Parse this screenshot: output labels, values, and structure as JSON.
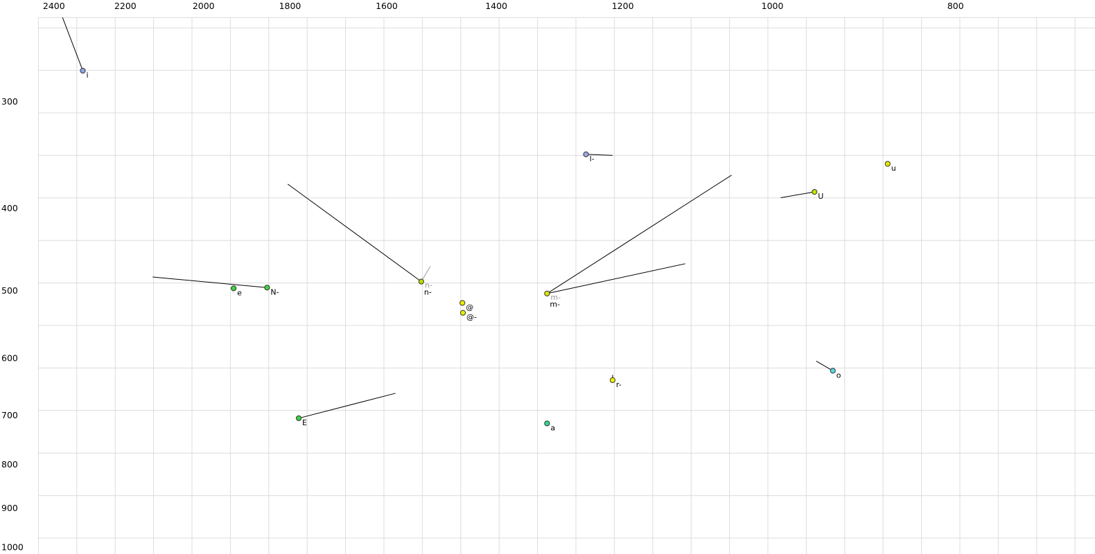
{
  "chart_data": {
    "type": "scatter",
    "title": "",
    "description": "Vowel formant chart: F2 (Hz, log scale, decreasing to the right) vs F1 (Hz, log scale, increasing downward); points are phone labels with formant-trajectory tail lines",
    "x_axis": {
      "label": "",
      "scale": "log",
      "direction": "decreasing-rightward",
      "range_hz": [
        2563,
        675
      ],
      "ticks": [
        2400,
        2200,
        2000,
        1800,
        1600,
        1400,
        1200,
        1000,
        800
      ]
    },
    "y_axis": {
      "label": "",
      "scale": "log",
      "direction": "increasing-downward",
      "range_hz": [
        228,
        1019
      ],
      "ticks": [
        300,
        400,
        500,
        600,
        700,
        800,
        900,
        1000
      ]
    },
    "grid": {
      "show": true,
      "color": "#dcdcdc"
    },
    "legend": {
      "show": false
    },
    "points": [
      {
        "id": "i",
        "label": "i",
        "f2": 2317,
        "f1": 276,
        "color": "#8aa7e8"
      },
      {
        "id": "l-",
        "label": "l-",
        "f2": 1255,
        "f1": 346,
        "color": "#9fa8e0"
      },
      {
        "id": "u",
        "label": "u",
        "f2": 869,
        "f1": 355,
        "color": "#e3ea00"
      },
      {
        "id": "U",
        "label": "U",
        "f2": 950,
        "f1": 383,
        "color": "#c6e000"
      },
      {
        "id": "e",
        "label": "e",
        "f2": 1928,
        "f1": 497,
        "color": "#3fd23f"
      },
      {
        "id": "N-",
        "label": "N-",
        "f2": 1851,
        "f1": 496,
        "color": "#3fd23f"
      },
      {
        "id": "n-",
        "label": "n-",
        "f2": 1534,
        "f1": 488,
        "color": "#b5dc00",
        "ghost_label": "n-"
      },
      {
        "id": "at",
        "label": "@",
        "f2": 1459,
        "f1": 517,
        "color": "#e8ee00"
      },
      {
        "id": "at-",
        "label": "@-",
        "f2": 1458,
        "f1": 531,
        "color": "#e8ee00"
      },
      {
        "id": "m-",
        "label": "m-",
        "f2": 1316,
        "f1": 504,
        "color": "#dfe600",
        "ghost_label": "m-"
      },
      {
        "id": "r-",
        "label": "r-",
        "f2": 1215,
        "f1": 637,
        "color": "#eef200"
      },
      {
        "id": "E",
        "label": "E",
        "f2": 1781,
        "f1": 706,
        "color": "#3fd23f"
      },
      {
        "id": "a",
        "label": "a",
        "f2": 1316,
        "f1": 716,
        "color": "#2fd690"
      },
      {
        "id": "o",
        "label": "o",
        "f2": 929,
        "f1": 621,
        "color": "#55d8dd"
      }
    ],
    "segments": [
      {
        "point": "i",
        "from": [
          2375,
          239
        ],
        "to": [
          2317,
          276
        ],
        "color": "#000000"
      },
      {
        "point": "l-",
        "from": [
          1255,
          346
        ],
        "to": [
          1215,
          347
        ],
        "color": "#000000"
      },
      {
        "point": "U",
        "from": [
          990,
          389
        ],
        "to": [
          950,
          383
        ],
        "color": "#000000"
      },
      {
        "point": "N-",
        "from": [
          2128,
          482
        ],
        "to": [
          1851,
          496
        ],
        "color": "#000000"
      },
      {
        "point": "n-",
        "from": [
          1805,
          375
        ],
        "to": [
          1534,
          488
        ],
        "color": "#000000"
      },
      {
        "point": "n-",
        "from": [
          1534,
          488
        ],
        "to": [
          1517,
          468
        ],
        "color": "#999999"
      },
      {
        "point": "m-",
        "from": [
          1316,
          504
        ],
        "to": [
          1051,
          366
        ],
        "color": "#000000"
      },
      {
        "point": "m-",
        "from": [
          1316,
          504
        ],
        "to": [
          1112,
          465
        ],
        "color": "#000000"
      },
      {
        "point": "r-",
        "from": [
          1215,
          628
        ],
        "to": [
          1215,
          637
        ],
        "color": "#000000"
      },
      {
        "point": "E",
        "from": [
          1781,
          706
        ],
        "to": [
          1583,
          660
        ],
        "color": "#000000"
      },
      {
        "point": "o",
        "from": [
          929,
          621
        ],
        "to": [
          948,
          605
        ],
        "color": "#000000"
      }
    ],
    "colors": {
      "background": "#ffffff",
      "axis_text": "#000000",
      "point_label": "#000000",
      "ghost_label": "#9a9a9a",
      "marker_stroke": "#333333"
    }
  }
}
